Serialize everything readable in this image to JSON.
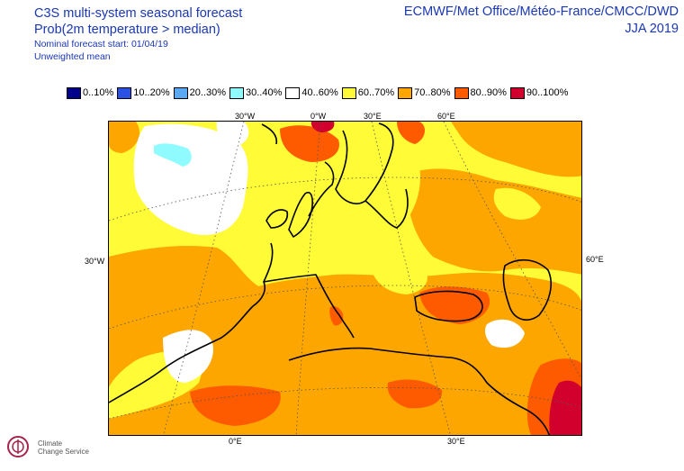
{
  "header": {
    "title": "C3S multi-system seasonal forecast",
    "subtitle": "Prob(2m temperature > median)",
    "forecast_start": "Nominal forecast start: 01/04/19",
    "mean_type": "Unweighted mean",
    "sources": "ECMWF/Met Office/Météo-France/CMCC/DWD",
    "season": "JJA 2019"
  },
  "legend": [
    {
      "label": "0..10%",
      "color": "#00008c"
    },
    {
      "label": "10..20%",
      "color": "#2a51e6"
    },
    {
      "label": "20..30%",
      "color": "#59a9f5"
    },
    {
      "label": "30..40%",
      "color": "#8ffbff"
    },
    {
      "label": "40..60%",
      "color": "#ffffff"
    },
    {
      "label": "60..70%",
      "color": "#fffb36"
    },
    {
      "label": "70..80%",
      "color": "#fea600"
    },
    {
      "label": "80..90%",
      "color": "#fe5a00"
    },
    {
      "label": "90..100%",
      "color": "#d2002d"
    }
  ],
  "map_labels": {
    "top": [
      "30°W",
      "0°W",
      "30°E",
      "60°E"
    ],
    "left": "30°W",
    "right": "60°E",
    "bottom": [
      "0°E",
      "30°E"
    ]
  },
  "logo": {
    "line1": "Climate",
    "line2": "Change Service"
  }
}
